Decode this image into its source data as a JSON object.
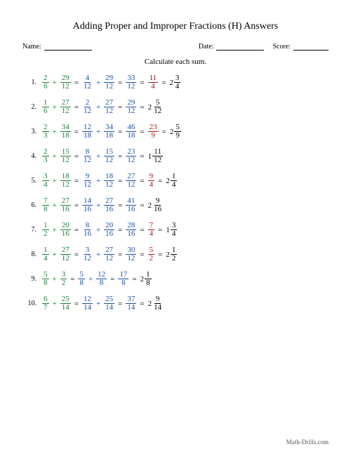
{
  "title": "Adding Proper and Improper Fractions (H) Answers",
  "header": {
    "name_label": "Name:",
    "date_label": "Date:",
    "score_label": "Score:"
  },
  "instruction": "Calculate each sum.",
  "footer": "Math-Drills.com",
  "colors": {
    "start": "#1e7a3e",
    "step": "#1a4fa3",
    "result": "#a01818",
    "mixed": "#000"
  },
  "problems": [
    {
      "n": "1.",
      "a": {
        "n": "2",
        "d": "6"
      },
      "b": {
        "n": "29",
        "d": "12"
      },
      "s1": {
        "n": "4",
        "d": "12"
      },
      "s2": {
        "n": "29",
        "d": "12"
      },
      "sum": {
        "n": "33",
        "d": "12"
      },
      "red": {
        "n": "11",
        "d": "4"
      },
      "mix": {
        "w": "2",
        "n": "3",
        "d": "4"
      }
    },
    {
      "n": "2.",
      "a": {
        "n": "1",
        "d": "6"
      },
      "b": {
        "n": "27",
        "d": "12"
      },
      "s1": {
        "n": "2",
        "d": "12"
      },
      "s2": {
        "n": "27",
        "d": "12"
      },
      "sum": {
        "n": "29",
        "d": "12"
      },
      "mix": {
        "w": "2",
        "n": "5",
        "d": "12"
      }
    },
    {
      "n": "3.",
      "a": {
        "n": "2",
        "d": "3"
      },
      "b": {
        "n": "34",
        "d": "18"
      },
      "s1": {
        "n": "12",
        "d": "18"
      },
      "s2": {
        "n": "34",
        "d": "18"
      },
      "sum": {
        "n": "46",
        "d": "18"
      },
      "red": {
        "n": "23",
        "d": "9"
      },
      "mix": {
        "w": "2",
        "n": "5",
        "d": "9"
      }
    },
    {
      "n": "4.",
      "a": {
        "n": "2",
        "d": "3"
      },
      "b": {
        "n": "15",
        "d": "12"
      },
      "s1": {
        "n": "8",
        "d": "12"
      },
      "s2": {
        "n": "15",
        "d": "12"
      },
      "sum": {
        "n": "23",
        "d": "12"
      },
      "mix": {
        "w": "1",
        "n": "11",
        "d": "12"
      }
    },
    {
      "n": "5.",
      "a": {
        "n": "3",
        "d": "4"
      },
      "b": {
        "n": "18",
        "d": "12"
      },
      "s1": {
        "n": "9",
        "d": "12"
      },
      "s2": {
        "n": "18",
        "d": "12"
      },
      "sum": {
        "n": "27",
        "d": "12"
      },
      "red": {
        "n": "9",
        "d": "4"
      },
      "mix": {
        "w": "2",
        "n": "1",
        "d": "4"
      }
    },
    {
      "n": "6.",
      "a": {
        "n": "7",
        "d": "8"
      },
      "b": {
        "n": "27",
        "d": "16"
      },
      "s1": {
        "n": "14",
        "d": "16"
      },
      "s2": {
        "n": "27",
        "d": "16"
      },
      "sum": {
        "n": "41",
        "d": "16"
      },
      "mix": {
        "w": "2",
        "n": "9",
        "d": "16"
      }
    },
    {
      "n": "7.",
      "a": {
        "n": "1",
        "d": "2"
      },
      "b": {
        "n": "20",
        "d": "16"
      },
      "s1": {
        "n": "8",
        "d": "16"
      },
      "s2": {
        "n": "20",
        "d": "16"
      },
      "sum": {
        "n": "28",
        "d": "16"
      },
      "red": {
        "n": "7",
        "d": "4"
      },
      "mix": {
        "w": "1",
        "n": "3",
        "d": "4"
      }
    },
    {
      "n": "8.",
      "a": {
        "n": "1",
        "d": "4"
      },
      "b": {
        "n": "27",
        "d": "12"
      },
      "s1": {
        "n": "3",
        "d": "12"
      },
      "s2": {
        "n": "27",
        "d": "12"
      },
      "sum": {
        "n": "30",
        "d": "12"
      },
      "red": {
        "n": "5",
        "d": "2"
      },
      "mix": {
        "w": "2",
        "n": "1",
        "d": "2"
      }
    },
    {
      "n": "9.",
      "a": {
        "n": "5",
        "d": "8"
      },
      "b": {
        "n": "3",
        "d": "2"
      },
      "s1": {
        "n": "5",
        "d": "8"
      },
      "s2": {
        "n": "12",
        "d": "8"
      },
      "sum": {
        "n": "17",
        "d": "8"
      },
      "mix": {
        "w": "2",
        "n": "1",
        "d": "8"
      }
    },
    {
      "n": "10.",
      "a": {
        "n": "6",
        "d": "7"
      },
      "b": {
        "n": "25",
        "d": "14"
      },
      "s1": {
        "n": "12",
        "d": "14"
      },
      "s2": {
        "n": "25",
        "d": "14"
      },
      "sum": {
        "n": "37",
        "d": "14"
      },
      "mix": {
        "w": "2",
        "n": "9",
        "d": "14"
      }
    }
  ]
}
